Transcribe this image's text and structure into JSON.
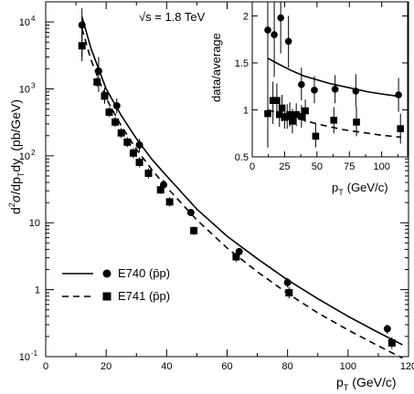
{
  "chart_data": [
    {
      "type": "scatter",
      "annotation": "√s = 1.8 TeV",
      "xlabel": "p",
      "xlabel_sub": "T",
      "xlabel_unit": "(GeV/c)",
      "ylabel_parts": [
        "d",
        "2",
        "σ/dp",
        "T",
        "dy",
        "(pb/GeV)"
      ],
      "xlim": [
        0,
        120
      ],
      "ylim": [
        0.1,
        20000
      ],
      "yscale": "log",
      "x_ticks": [
        0,
        20,
        40,
        60,
        80,
        100,
        120
      ],
      "y_ticks": [
        {
          "value": 0.1,
          "base": "10",
          "exp": "-1"
        },
        {
          "value": 1,
          "base": "1",
          "exp": ""
        },
        {
          "value": 10,
          "base": "10",
          "exp": ""
        },
        {
          "value": 100,
          "base": "10",
          "exp": "2"
        },
        {
          "value": 1000,
          "base": "10",
          "exp": "3"
        },
        {
          "value": 10000,
          "base": "10",
          "exp": "4"
        }
      ],
      "legend_position": "lower-left",
      "series": [
        {
          "name": "E740 (p̄p)",
          "marker": "circle",
          "curve": "solid",
          "points": [
            {
              "x": 12,
              "y": 9000,
              "lo": 3000,
              "hi": 16000
            },
            {
              "x": 17.5,
              "y": 1850,
              "lo": 900,
              "hi": 3000
            },
            {
              "x": 19.5,
              "y": 800,
              "lo": 600,
              "hi": 1050
            },
            {
              "x": 23.5,
              "y": 560,
              "lo": 430,
              "hi": 720
            },
            {
              "x": 31,
              "y": 145,
              "lo": 115,
              "hi": 180
            },
            {
              "x": 39,
              "y": 37,
              "lo": 31,
              "hi": 44
            },
            {
              "x": 48,
              "y": 14.2,
              "lo": 12.8,
              "hi": 15.7
            },
            {
              "x": 64,
              "y": 3.7,
              "lo": 3.3,
              "hi": 4.1
            },
            {
              "x": 80,
              "y": 1.28,
              "lo": 1.08,
              "hi": 1.5
            },
            {
              "x": 113,
              "y": 0.26,
              "lo": 0.22,
              "hi": 0.3
            }
          ],
          "curve_points": [
            [
              12,
              12000
            ],
            [
              15,
              4000
            ],
            [
              20,
              1000
            ],
            [
              25,
              400
            ],
            [
              30,
              180
            ],
            [
              35,
              90
            ],
            [
              40,
              50
            ],
            [
              50,
              16
            ],
            [
              60,
              6.3
            ],
            [
              70,
              2.9
            ],
            [
              80,
              1.4
            ],
            [
              90,
              0.73
            ],
            [
              100,
              0.4
            ],
            [
              110,
              0.23
            ],
            [
              118,
              0.15
            ]
          ]
        },
        {
          "name": "E741 (p̄p)",
          "marker": "square",
          "curve": "dashed",
          "points": [
            {
              "x": 12,
              "y": 4400,
              "lo": 2600,
              "hi": 7500
            },
            {
              "x": 17,
              "y": 1270,
              "lo": 1070,
              "hi": 1500
            },
            {
              "x": 19.5,
              "y": 780,
              "lo": 680,
              "hi": 900
            },
            {
              "x": 21,
              "y": 450,
              "lo": 380,
              "hi": 530
            },
            {
              "x": 23,
              "y": 320,
              "lo": 270,
              "hi": 380
            },
            {
              "x": 25,
              "y": 220,
              "lo": 185,
              "hi": 260
            },
            {
              "x": 27,
              "y": 160,
              "lo": 135,
              "hi": 190
            },
            {
              "x": 29,
              "y": 110,
              "lo": 92,
              "hi": 130
            },
            {
              "x": 31,
              "y": 80,
              "lo": 67,
              "hi": 95
            },
            {
              "x": 34,
              "y": 55,
              "lo": 46,
              "hi": 65
            },
            {
              "x": 38,
              "y": 31,
              "lo": 27,
              "hi": 36
            },
            {
              "x": 41,
              "y": 20.5,
              "lo": 17.5,
              "hi": 24
            },
            {
              "x": 49,
              "y": 7.6,
              "lo": 6.6,
              "hi": 8.8
            },
            {
              "x": 63,
              "y": 3.1,
              "lo": 2.6,
              "hi": 3.7
            },
            {
              "x": 80.5,
              "y": 0.9,
              "lo": 0.74,
              "hi": 1.1
            },
            {
              "x": 114.5,
              "y": 0.16,
              "lo": 0.13,
              "hi": 0.195
            }
          ],
          "curve_points": [
            [
              12,
              8000
            ],
            [
              15,
              2700
            ],
            [
              20,
              720
            ],
            [
              25,
              280
            ],
            [
              30,
              125
            ],
            [
              35,
              63
            ],
            [
              40,
              34
            ],
            [
              50,
              11
            ],
            [
              60,
              4.2
            ],
            [
              70,
              1.85
            ],
            [
              80,
              0.88
            ],
            [
              90,
              0.45
            ],
            [
              100,
              0.25
            ],
            [
              110,
              0.145
            ],
            [
              118,
              0.095
            ]
          ]
        }
      ]
    },
    {
      "type": "scatter",
      "title": "inset",
      "xlabel": "p",
      "xlabel_sub": "T",
      "xlabel_unit": "(GeV/c)",
      "ylabel": "data/average",
      "xlim": [
        0,
        120
      ],
      "ylim": [
        0.5,
        2.15
      ],
      "x_ticks": [
        0,
        25,
        50,
        75,
        100
      ],
      "y_ticks": [
        0.5,
        1,
        1.5,
        2
      ],
      "series": [
        {
          "name": "E740",
          "marker": "circle",
          "curve": "solid",
          "points": [
            {
              "x": 12,
              "y": 1.85,
              "lo": 1.2,
              "hi": 2.15
            },
            {
              "x": 17,
              "y": 1.8,
              "lo": 1.35,
              "hi": 2.15
            },
            {
              "x": 22,
              "y": 1.98,
              "lo": 1.6,
              "hi": 2.15
            },
            {
              "x": 28,
              "y": 1.73,
              "lo": 1.45,
              "hi": 2.0
            },
            {
              "x": 38,
              "y": 1.27,
              "lo": 1.1,
              "hi": 1.45
            },
            {
              "x": 48,
              "y": 1.21,
              "lo": 1.07,
              "hi": 1.36
            },
            {
              "x": 64,
              "y": 1.22,
              "lo": 1.07,
              "hi": 1.37
            },
            {
              "x": 80,
              "y": 1.2,
              "lo": 1.03,
              "hi": 1.38
            },
            {
              "x": 113,
              "y": 1.16,
              "lo": 0.98,
              "hi": 1.34
            }
          ],
          "curve_points": [
            [
              12,
              1.55
            ],
            [
              20,
              1.49
            ],
            [
              30,
              1.42
            ],
            [
              40,
              1.36
            ],
            [
              50,
              1.32
            ],
            [
              60,
              1.28
            ],
            [
              70,
              1.25
            ],
            [
              80,
              1.22
            ],
            [
              90,
              1.19
            ],
            [
              100,
              1.17
            ],
            [
              115,
              1.14
            ]
          ]
        },
        {
          "name": "E741",
          "marker": "square",
          "curve": "dashed",
          "points": [
            {
              "x": 12,
              "y": 0.96,
              "lo": 0.6,
              "hi": 1.35
            },
            {
              "x": 16,
              "y": 1.1,
              "lo": 0.85,
              "hi": 1.3
            },
            {
              "x": 19,
              "y": 1.1,
              "lo": 0.92,
              "hi": 1.28
            },
            {
              "x": 21,
              "y": 0.95,
              "lo": 0.82,
              "hi": 1.08
            },
            {
              "x": 23,
              "y": 1.02,
              "lo": 0.88,
              "hi": 1.16
            },
            {
              "x": 25,
              "y": 0.92,
              "lo": 0.8,
              "hi": 1.04
            },
            {
              "x": 27,
              "y": 0.93,
              "lo": 0.8,
              "hi": 1.06
            },
            {
              "x": 29,
              "y": 0.95,
              "lo": 0.82,
              "hi": 1.08
            },
            {
              "x": 31,
              "y": 0.88,
              "lo": 0.75,
              "hi": 1.01
            },
            {
              "x": 34,
              "y": 0.95,
              "lo": 0.83,
              "hi": 1.07
            },
            {
              "x": 38,
              "y": 0.93,
              "lo": 0.81,
              "hi": 1.05
            },
            {
              "x": 41,
              "y": 0.99,
              "lo": 0.87,
              "hi": 1.11
            },
            {
              "x": 49,
              "y": 0.72,
              "lo": 0.6,
              "hi": 0.86
            },
            {
              "x": 63,
              "y": 0.89,
              "lo": 0.75,
              "hi": 1.03
            },
            {
              "x": 80.5,
              "y": 0.87,
              "lo": 0.72,
              "hi": 1.03
            },
            {
              "x": 114.5,
              "y": 0.8,
              "lo": 0.64,
              "hi": 0.96
            }
          ],
          "curve_points": [
            [
              12,
              1.0
            ],
            [
              20,
              0.97
            ],
            [
              30,
              0.93
            ],
            [
              40,
              0.89
            ],
            [
              50,
              0.85
            ],
            [
              60,
              0.82
            ],
            [
              70,
              0.79
            ],
            [
              80,
              0.77
            ],
            [
              90,
              0.75
            ],
            [
              100,
              0.73
            ],
            [
              115,
              0.71
            ]
          ]
        }
      ]
    }
  ]
}
